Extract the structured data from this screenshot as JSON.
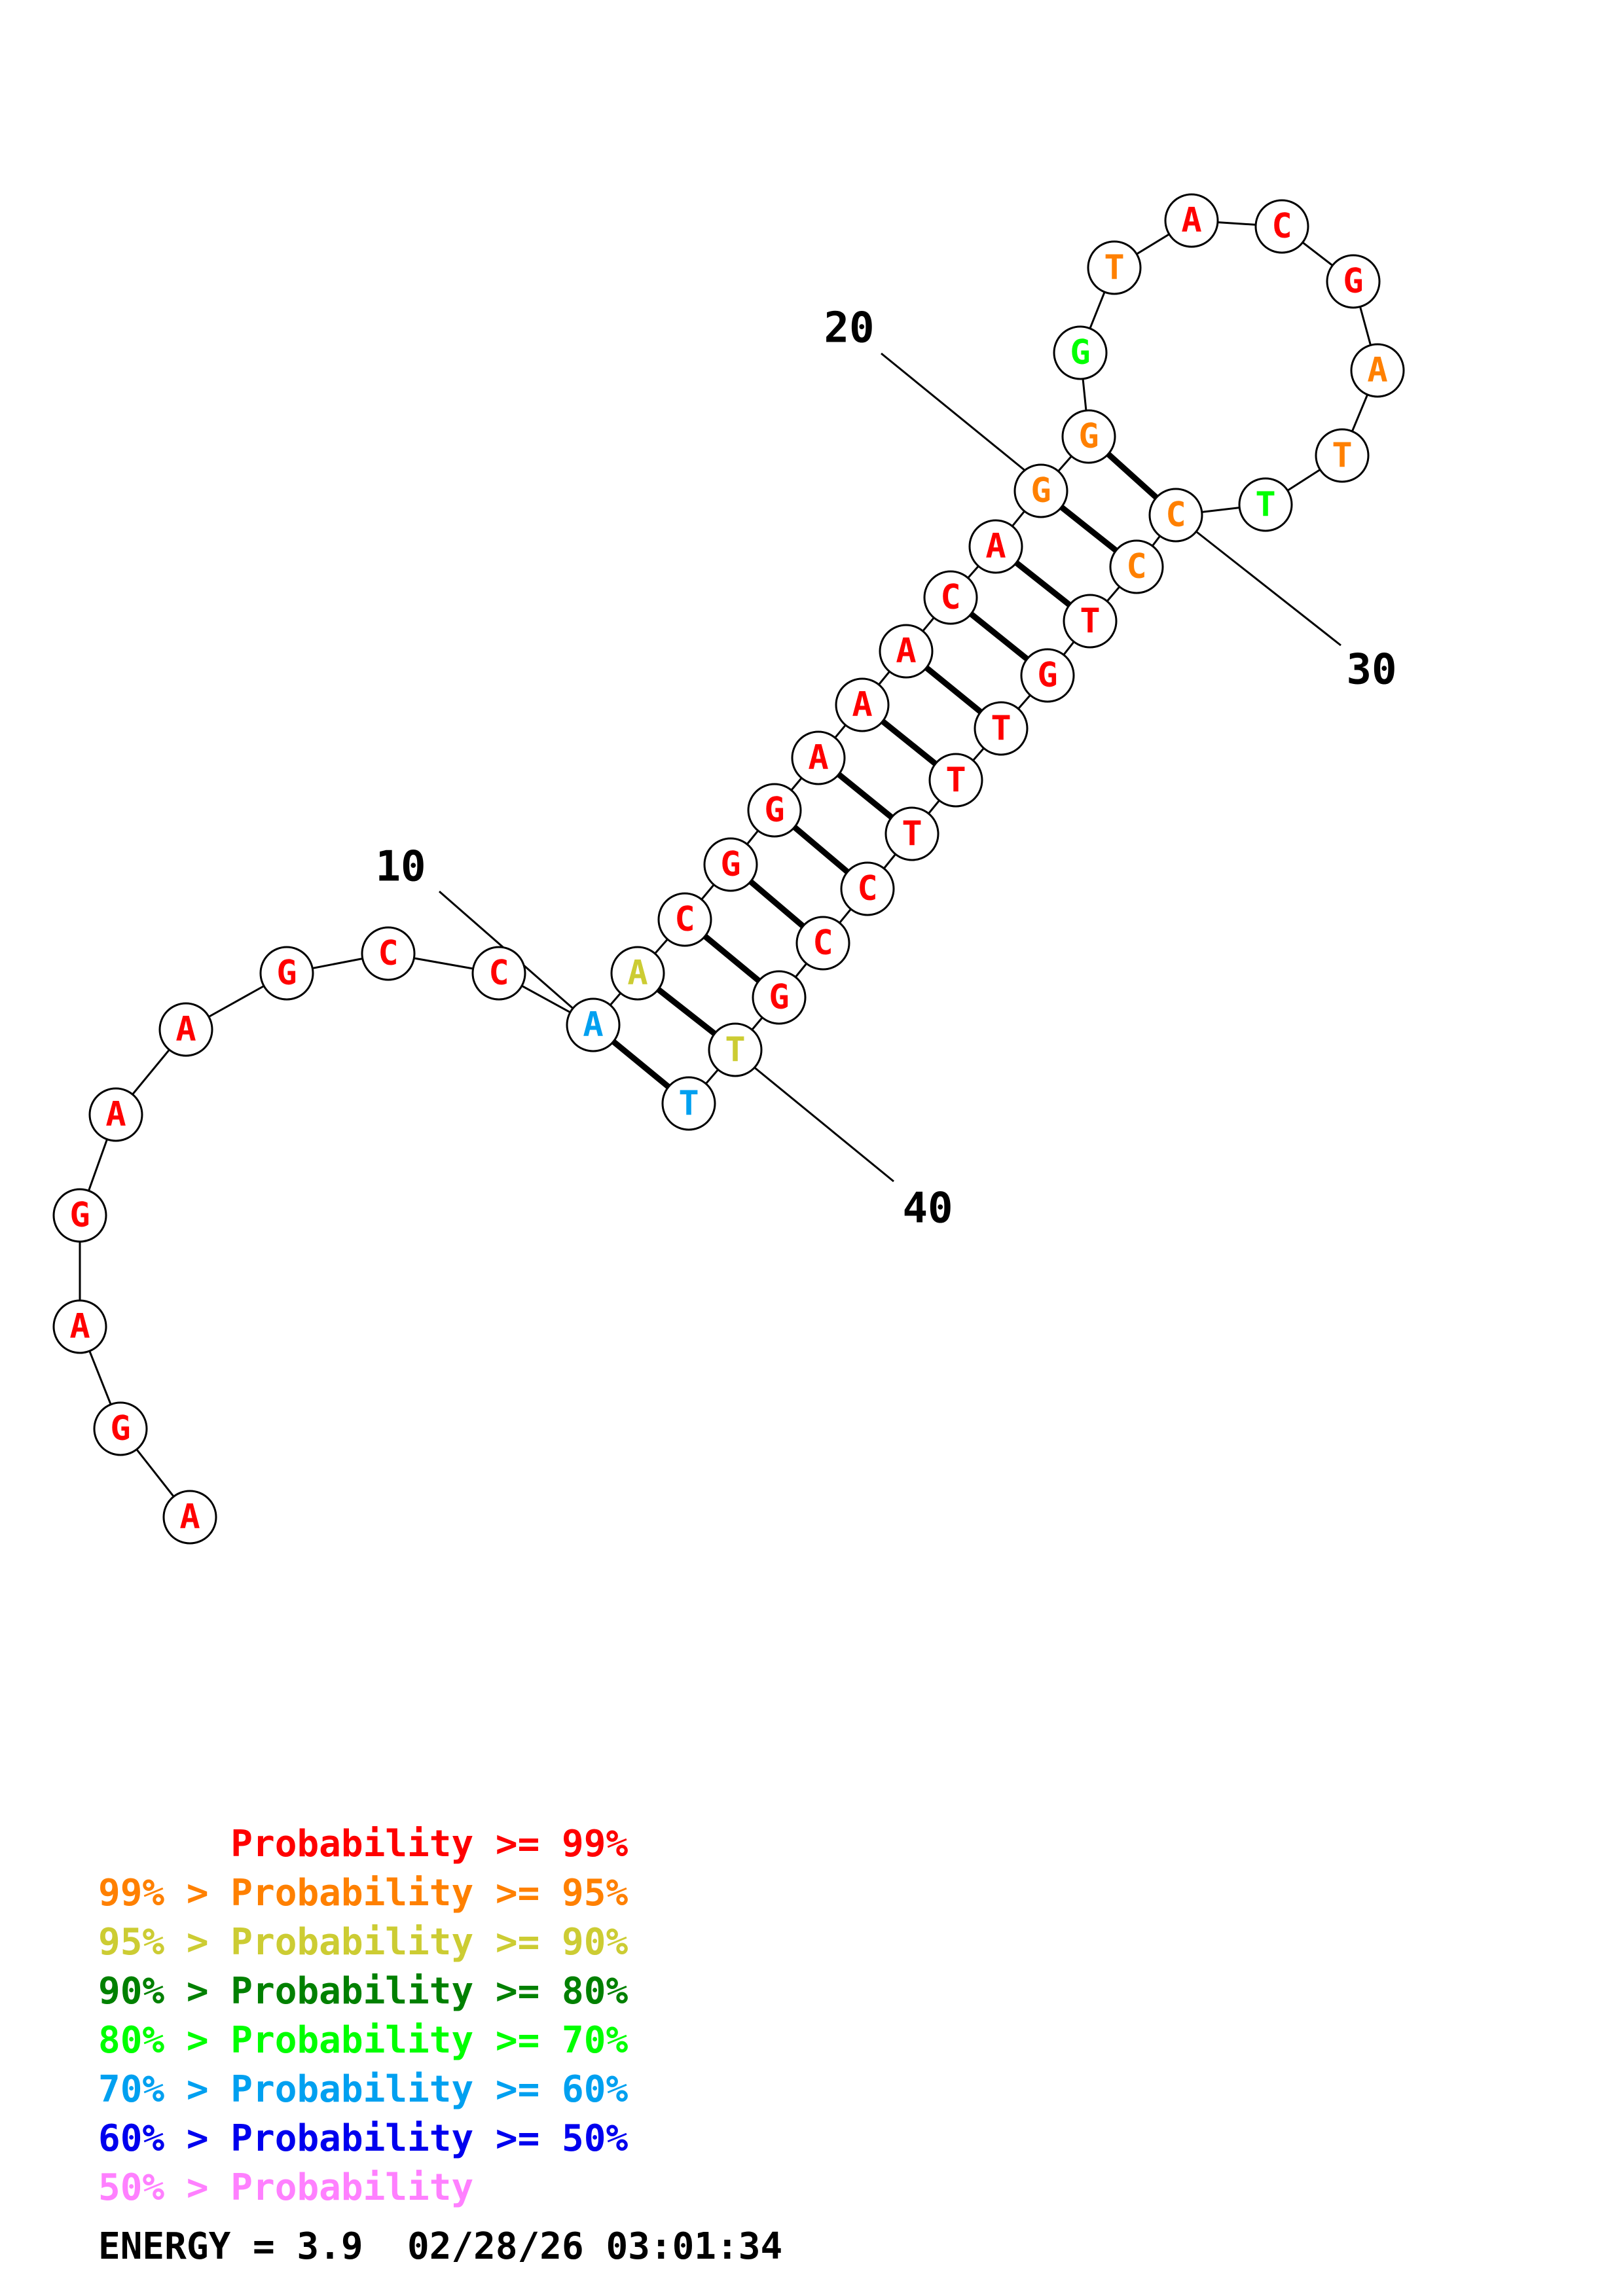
{
  "colors": {
    "p99": "#ff0000",
    "p95": "#ff8000",
    "p90": "#cccc33",
    "p80": "#008000",
    "p70": "#00ff00",
    "p60": "#00a0f0",
    "p50": "#0000ee",
    "plow": "#ff80ff",
    "black": "#000000"
  },
  "sequence": [
    {
      "n": 1,
      "base": "A",
      "level": "p99"
    },
    {
      "n": 2,
      "base": "G",
      "level": "p99"
    },
    {
      "n": 3,
      "base": "A",
      "level": "p99"
    },
    {
      "n": 4,
      "base": "G",
      "level": "p99"
    },
    {
      "n": 5,
      "base": "A",
      "level": "p99"
    },
    {
      "n": 6,
      "base": "A",
      "level": "p99"
    },
    {
      "n": 7,
      "base": "G",
      "level": "p99"
    },
    {
      "n": 8,
      "base": "C",
      "level": "p99"
    },
    {
      "n": 9,
      "base": "C",
      "level": "p99"
    },
    {
      "n": 10,
      "base": "A",
      "level": "p60"
    },
    {
      "n": 11,
      "base": "A",
      "level": "p90"
    },
    {
      "n": 12,
      "base": "C",
      "level": "p99"
    },
    {
      "n": 13,
      "base": "G",
      "level": "p99"
    },
    {
      "n": 14,
      "base": "G",
      "level": "p99"
    },
    {
      "n": 15,
      "base": "A",
      "level": "p99"
    },
    {
      "n": 16,
      "base": "A",
      "level": "p99"
    },
    {
      "n": 17,
      "base": "A",
      "level": "p99"
    },
    {
      "n": 18,
      "base": "C",
      "level": "p99"
    },
    {
      "n": 19,
      "base": "A",
      "level": "p99"
    },
    {
      "n": 20,
      "base": "G",
      "level": "p95"
    },
    {
      "n": 21,
      "base": "G",
      "level": "p95"
    },
    {
      "n": 22,
      "base": "G",
      "level": "p70"
    },
    {
      "n": 23,
      "base": "T",
      "level": "p95"
    },
    {
      "n": 24,
      "base": "A",
      "level": "p99"
    },
    {
      "n": 25,
      "base": "C",
      "level": "p99"
    },
    {
      "n": 26,
      "base": "G",
      "level": "p99"
    },
    {
      "n": 27,
      "base": "A",
      "level": "p95"
    },
    {
      "n": 28,
      "base": "T",
      "level": "p95"
    },
    {
      "n": 29,
      "base": "T",
      "level": "p70"
    },
    {
      "n": 30,
      "base": "C",
      "level": "p95"
    },
    {
      "n": 31,
      "base": "C",
      "level": "p95"
    },
    {
      "n": 32,
      "base": "T",
      "level": "p99"
    },
    {
      "n": 33,
      "base": "G",
      "level": "p99"
    },
    {
      "n": 34,
      "base": "T",
      "level": "p99"
    },
    {
      "n": 35,
      "base": "T",
      "level": "p99"
    },
    {
      "n": 36,
      "base": "T",
      "level": "p99"
    },
    {
      "n": 37,
      "base": "C",
      "level": "p99"
    },
    {
      "n": 38,
      "base": "C",
      "level": "p99"
    },
    {
      "n": 39,
      "base": "G",
      "level": "p99"
    },
    {
      "n": 40,
      "base": "T",
      "level": "p90"
    },
    {
      "n": 41,
      "base": "T",
      "level": "p60"
    }
  ],
  "pairs": [
    [
      10,
      41
    ],
    [
      11,
      40
    ],
    [
      12,
      39
    ],
    [
      13,
      38
    ],
    [
      14,
      37
    ],
    [
      15,
      36
    ],
    [
      16,
      35
    ],
    [
      17,
      34
    ],
    [
      18,
      33
    ],
    [
      19,
      32
    ],
    [
      20,
      31
    ],
    [
      21,
      30
    ]
  ],
  "position_labels": [
    {
      "n": 10,
      "text": "10"
    },
    {
      "n": 20,
      "text": "20"
    },
    {
      "n": 30,
      "text": "30"
    },
    {
      "n": 40,
      "text": "40"
    }
  ],
  "legend": [
    {
      "prefix": "    ",
      "text": "Probability >= 99%",
      "level": "p99"
    },
    {
      "prefix": "99% > ",
      "text": "Probability >= 95%",
      "level": "p95"
    },
    {
      "prefix": "95% > ",
      "text": "Probability >= 90%",
      "level": "p90"
    },
    {
      "prefix": "90% > ",
      "text": "Probability >= 80%",
      "level": "p80"
    },
    {
      "prefix": "80% > ",
      "text": "Probability >= 70%",
      "level": "p70"
    },
    {
      "prefix": "70% > ",
      "text": "Probability >= 60%",
      "level": "p60"
    },
    {
      "prefix": "60% > ",
      "text": "Probability >= 50%",
      "level": "p50"
    },
    {
      "prefix": "50% > ",
      "text": "Probability",
      "level": "plow"
    }
  ],
  "footer": {
    "energy": "ENERGY = 3.9",
    "timestamp": "02/28/26 03:01:34"
  }
}
